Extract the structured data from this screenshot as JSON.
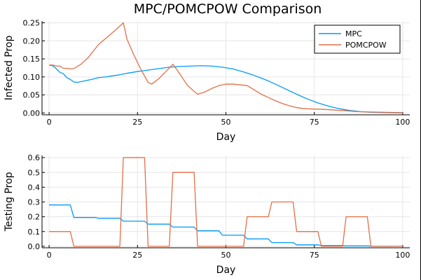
{
  "chart_data": [
    {
      "type": "line",
      "title": "MPC/POMCPOW Comparison",
      "xlabel": "Day",
      "ylabel": "Infected Prop",
      "xlim": [
        -2,
        102
      ],
      "ylim": [
        -0.005,
        0.255
      ],
      "xticks": [
        0,
        25,
        50,
        75,
        100
      ],
      "yticks": [
        0.0,
        0.05,
        0.1,
        0.15,
        0.2,
        0.25
      ],
      "xtick_labels": [
        "0",
        "25",
        "50",
        "75",
        "100"
      ],
      "ytick_labels": [
        "0.00",
        "0.05",
        "0.10",
        "0.15",
        "0.20",
        "0.25"
      ],
      "grid": true,
      "legend": "top-right",
      "series": [
        {
          "name": "MPC",
          "color": "#009af9",
          "points": [
            [
              0,
              0.133
            ],
            [
              1,
              0.131
            ],
            [
              2,
              0.123
            ],
            [
              3,
              0.113
            ],
            [
              4,
              0.109
            ],
            [
              5,
              0.098
            ],
            [
              6,
              0.093
            ],
            [
              7,
              0.086
            ],
            [
              8,
              0.085
            ],
            [
              9,
              0.087
            ],
            [
              10,
              0.089
            ],
            [
              12,
              0.093
            ],
            [
              14,
              0.098
            ],
            [
              16,
              0.1
            ],
            [
              18,
              0.103
            ],
            [
              20,
              0.106
            ],
            [
              22,
              0.11
            ],
            [
              25,
              0.115
            ],
            [
              28,
              0.119
            ],
            [
              31,
              0.123
            ],
            [
              34,
              0.127
            ],
            [
              37,
              0.129
            ],
            [
              40,
              0.13
            ],
            [
              43,
              0.131
            ],
            [
              46,
              0.13
            ],
            [
              49,
              0.127
            ],
            [
              52,
              0.122
            ],
            [
              55,
              0.114
            ],
            [
              58,
              0.104
            ],
            [
              61,
              0.093
            ],
            [
              64,
              0.08
            ],
            [
              67,
              0.066
            ],
            [
              70,
              0.052
            ],
            [
              73,
              0.039
            ],
            [
              76,
              0.028
            ],
            [
              79,
              0.019
            ],
            [
              82,
              0.012
            ],
            [
              85,
              0.007
            ],
            [
              88,
              0.004
            ],
            [
              91,
              0.002
            ],
            [
              95,
              0.001
            ],
            [
              100,
              0.0
            ]
          ]
        },
        {
          "name": "POMCPOW",
          "color": "#e26f46",
          "points": [
            [
              0,
              0.133
            ],
            [
              1,
              0.133
            ],
            [
              2,
              0.13
            ],
            [
              3,
              0.13
            ],
            [
              4,
              0.124
            ],
            [
              5,
              0.124
            ],
            [
              6,
              0.122
            ],
            [
              7,
              0.123
            ],
            [
              9,
              0.135
            ],
            [
              11,
              0.153
            ],
            [
              14,
              0.19
            ],
            [
              17,
              0.215
            ],
            [
              19,
              0.232
            ],
            [
              21,
              0.25
            ],
            [
              22,
              0.205
            ],
            [
              24,
              0.16
            ],
            [
              26,
              0.12
            ],
            [
              28,
              0.085
            ],
            [
              29,
              0.08
            ],
            [
              31,
              0.095
            ],
            [
              33,
              0.115
            ],
            [
              35,
              0.135
            ],
            [
              37,
              0.108
            ],
            [
              39,
              0.078
            ],
            [
              41,
              0.06
            ],
            [
              42,
              0.052
            ],
            [
              44,
              0.058
            ],
            [
              46,
              0.068
            ],
            [
              48,
              0.076
            ],
            [
              50,
              0.08
            ],
            [
              52,
              0.08
            ],
            [
              54,
              0.078
            ],
            [
              56,
              0.076
            ],
            [
              58,
              0.064
            ],
            [
              60,
              0.052
            ],
            [
              62,
              0.043
            ],
            [
              64,
              0.034
            ],
            [
              66,
              0.026
            ],
            [
              68,
              0.02
            ],
            [
              70,
              0.015
            ],
            [
              72,
              0.012
            ],
            [
              75,
              0.011
            ],
            [
              78,
              0.01
            ],
            [
              81,
              0.008
            ],
            [
              84,
              0.006
            ],
            [
              87,
              0.004
            ],
            [
              90,
              0.003
            ],
            [
              95,
              0.002
            ],
            [
              100,
              0.001
            ]
          ]
        }
      ]
    },
    {
      "type": "line",
      "title": "",
      "xlabel": "Day",
      "ylabel": "Testing Prop",
      "xlim": [
        -2,
        102
      ],
      "ylim": [
        -0.01,
        0.615
      ],
      "xticks": [
        0,
        25,
        50,
        75,
        100
      ],
      "yticks": [
        0.0,
        0.1,
        0.2,
        0.3,
        0.4,
        0.5,
        0.6
      ],
      "xtick_labels": [
        "0",
        "25",
        "50",
        "75",
        "100"
      ],
      "ytick_labels": [
        "0.0",
        "0.1",
        "0.2",
        "0.3",
        "0.4",
        "0.5",
        "0.6"
      ],
      "grid": true,
      "legend": "none",
      "series": [
        {
          "name": "MPC",
          "color": "#009af9",
          "points": [
            [
              0,
              0.28
            ],
            [
              6,
              0.28
            ],
            [
              7,
              0.195
            ],
            [
              13,
              0.195
            ],
            [
              14,
              0.19
            ],
            [
              20,
              0.19
            ],
            [
              21,
              0.17
            ],
            [
              27,
              0.17
            ],
            [
              28,
              0.15
            ],
            [
              34,
              0.15
            ],
            [
              35,
              0.13
            ],
            [
              41,
              0.13
            ],
            [
              42,
              0.105
            ],
            [
              48,
              0.105
            ],
            [
              49,
              0.075
            ],
            [
              55,
              0.075
            ],
            [
              56,
              0.05
            ],
            [
              62,
              0.05
            ],
            [
              63,
              0.025
            ],
            [
              69,
              0.025
            ],
            [
              70,
              0.01
            ],
            [
              76,
              0.01
            ],
            [
              77,
              0.005
            ],
            [
              83,
              0.005
            ],
            [
              84,
              0.003
            ],
            [
              90,
              0.003
            ],
            [
              91,
              0.001
            ],
            [
              100,
              0.0
            ]
          ]
        },
        {
          "name": "POMCPOW",
          "color": "#e26f46",
          "points": [
            [
              0,
              0.1
            ],
            [
              6,
              0.1
            ],
            [
              7,
              0.0
            ],
            [
              20,
              0.0
            ],
            [
              21,
              0.6
            ],
            [
              27,
              0.6
            ],
            [
              28,
              0.0
            ],
            [
              34,
              0.0
            ],
            [
              35,
              0.5
            ],
            [
              41,
              0.5
            ],
            [
              42,
              0.0
            ],
            [
              55,
              0.0
            ],
            [
              56,
              0.2
            ],
            [
              62,
              0.2
            ],
            [
              63,
              0.3
            ],
            [
              69,
              0.3
            ],
            [
              70,
              0.1
            ],
            [
              76,
              0.1
            ],
            [
              77,
              0.0
            ],
            [
              83,
              0.0
            ],
            [
              84,
              0.2
            ],
            [
              90,
              0.2
            ],
            [
              91,
              0.0
            ],
            [
              100,
              0.0
            ]
          ]
        }
      ]
    }
  ]
}
